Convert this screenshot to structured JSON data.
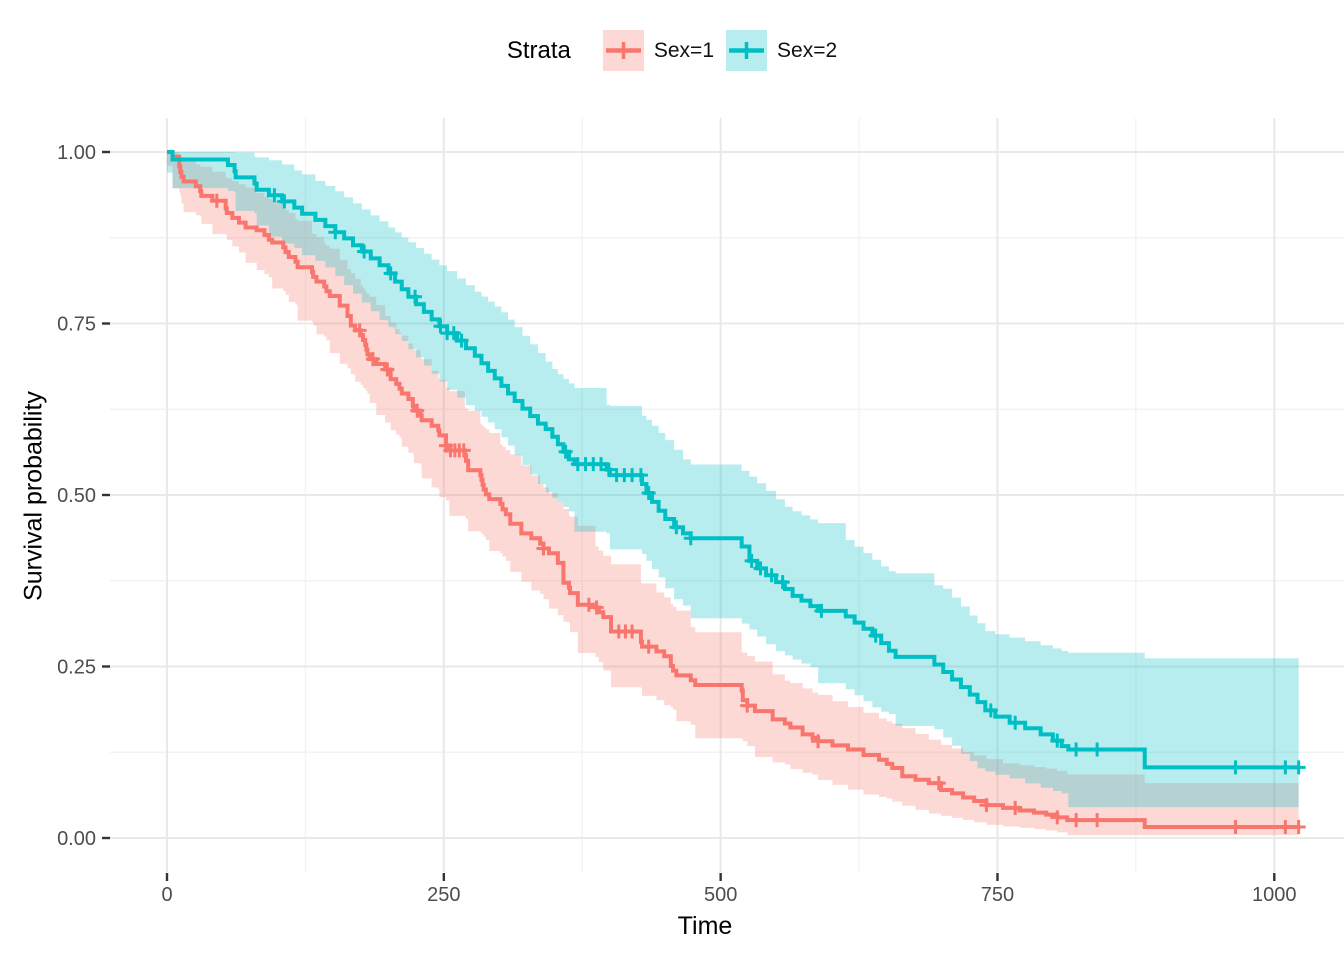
{
  "chart_data": {
    "type": "line",
    "subtype": "kaplan-meier-step-curves-with-confidence-bands",
    "title": "",
    "legend": {
      "title": "Strata",
      "position": "top",
      "items": [
        {
          "id": "sex1",
          "label": "Sex=1",
          "color": "#F8766D"
        },
        {
          "id": "sex2",
          "label": "Sex=2",
          "color": "#00BFC4"
        }
      ]
    },
    "x_axis": {
      "label": "Time",
      "ticks": [
        0,
        250,
        500,
        750,
        1000
      ],
      "tick_labels": [
        "0",
        "250",
        "500",
        "750",
        "1000"
      ],
      "minor_ticks": [
        125,
        375,
        625,
        875
      ],
      "range": [
        0,
        1022
      ]
    },
    "y_axis": {
      "label": "Survival probability",
      "ticks": [
        0.0,
        0.25,
        0.5,
        0.75,
        1.0
      ],
      "tick_labels": [
        "0.00",
        "0.25",
        "0.50",
        "0.75",
        "1.00"
      ],
      "minor_ticks": [
        0.125,
        0.375,
        0.625,
        0.875
      ],
      "range": [
        0,
        1
      ]
    },
    "grid": {
      "major_color": "#E9E9E9",
      "minor_color": "#F3F3F3",
      "background": "#FFFFFF"
    },
    "style": {
      "band_opacity": 0.28,
      "line_width": 4,
      "censor_size": 7,
      "tick_label_color": "#4D4D4D"
    },
    "series": [
      {
        "id": "sex1",
        "name": "Sex=1",
        "color": "#F8766D",
        "end_time": 1022,
        "steps": [
          [
            0,
            1.0
          ],
          [
            5,
            0.993
          ],
          [
            11,
            0.979
          ],
          [
            12,
            0.971
          ],
          [
            13,
            0.964
          ],
          [
            15,
            0.957
          ],
          [
            26,
            0.95
          ],
          [
            30,
            0.943
          ],
          [
            31,
            0.936
          ],
          [
            41,
            0.929
          ],
          [
            53,
            0.918
          ],
          [
            54,
            0.911
          ],
          [
            59,
            0.904
          ],
          [
            65,
            0.897
          ],
          [
            71,
            0.89
          ],
          [
            81,
            0.886
          ],
          [
            88,
            0.879
          ],
          [
            92,
            0.872
          ],
          [
            95,
            0.868
          ],
          [
            105,
            0.861
          ],
          [
            107,
            0.854
          ],
          [
            110,
            0.847
          ],
          [
            116,
            0.84
          ],
          [
            118,
            0.832
          ],
          [
            131,
            0.825
          ],
          [
            132,
            0.818
          ],
          [
            135,
            0.811
          ],
          [
            142,
            0.804
          ],
          [
            144,
            0.797
          ],
          [
            147,
            0.79
          ],
          [
            156,
            0.776
          ],
          [
            163,
            0.761
          ],
          [
            166,
            0.747
          ],
          [
            170,
            0.74
          ],
          [
            175,
            0.733
          ],
          [
            177,
            0.726
          ],
          [
            179,
            0.719
          ],
          [
            180,
            0.712
          ],
          [
            181,
            0.705
          ],
          [
            183,
            0.698
          ],
          [
            189,
            0.691
          ],
          [
            197,
            0.683
          ],
          [
            202,
            0.669
          ],
          [
            207,
            0.662
          ],
          [
            210,
            0.655
          ],
          [
            212,
            0.648
          ],
          [
            218,
            0.64
          ],
          [
            222,
            0.63
          ],
          [
            223,
            0.623
          ],
          [
            229,
            0.616
          ],
          [
            230,
            0.609
          ],
          [
            239,
            0.601
          ],
          [
            245,
            0.594
          ],
          [
            246,
            0.587
          ],
          [
            252,
            0.572
          ],
          [
            255,
            0.565
          ],
          [
            269,
            0.558
          ],
          [
            270,
            0.55
          ],
          [
            272,
            0.536
          ],
          [
            283,
            0.529
          ],
          [
            284,
            0.522
          ],
          [
            285,
            0.515
          ],
          [
            286,
            0.508
          ],
          [
            288,
            0.501
          ],
          [
            291,
            0.494
          ],
          [
            301,
            0.487
          ],
          [
            303,
            0.479
          ],
          [
            306,
            0.472
          ],
          [
            310,
            0.458
          ],
          [
            320,
            0.444
          ],
          [
            329,
            0.437
          ],
          [
            337,
            0.429
          ],
          [
            340,
            0.422
          ],
          [
            345,
            0.415
          ],
          [
            353,
            0.401
          ],
          [
            358,
            0.372
          ],
          [
            363,
            0.365
          ],
          [
            364,
            0.357
          ],
          [
            371,
            0.34
          ],
          [
            387,
            0.336
          ],
          [
            390,
            0.329
          ],
          [
            394,
            0.322
          ],
          [
            401,
            0.301
          ],
          [
            428,
            0.286
          ],
          [
            429,
            0.279
          ],
          [
            442,
            0.272
          ],
          [
            449,
            0.265
          ],
          [
            455,
            0.251
          ],
          [
            457,
            0.244
          ],
          [
            460,
            0.237
          ],
          [
            473,
            0.23
          ],
          [
            477,
            0.223
          ],
          [
            519,
            0.215
          ],
          [
            520,
            0.201
          ],
          [
            524,
            0.193
          ],
          [
            531,
            0.185
          ],
          [
            547,
            0.173
          ],
          [
            558,
            0.167
          ],
          [
            563,
            0.161
          ],
          [
            574,
            0.151
          ],
          [
            583,
            0.146
          ],
          [
            588,
            0.141
          ],
          [
            601,
            0.135
          ],
          [
            615,
            0.129
          ],
          [
            629,
            0.121
          ],
          [
            643,
            0.114
          ],
          [
            650,
            0.108
          ],
          [
            655,
            0.102
          ],
          [
            664,
            0.09
          ],
          [
            676,
            0.085
          ],
          [
            688,
            0.08
          ],
          [
            699,
            0.07
          ],
          [
            709,
            0.065
          ],
          [
            719,
            0.059
          ],
          [
            729,
            0.054
          ],
          [
            740,
            0.048
          ],
          [
            755,
            0.044
          ],
          [
            770,
            0.04
          ],
          [
            783,
            0.037
          ],
          [
            794,
            0.034
          ],
          [
            804,
            0.03
          ],
          [
            813,
            0.026
          ],
          [
            883,
            0.016
          ]
        ],
        "censor_times": [
          45,
          174,
          186,
          199,
          226,
          252,
          256,
          260,
          264,
          268,
          340,
          381,
          388,
          408,
          414,
          420,
          435,
          524,
          588,
          697,
          740,
          766,
          804,
          821,
          840,
          965,
          1010,
          1022
        ],
        "ci": [
          [
            0,
            1.0,
            1.0
          ],
          [
            5,
            0.98,
            1.0
          ],
          [
            15,
            0.925,
            0.99
          ],
          [
            50,
            0.885,
            0.965
          ],
          [
            100,
            0.81,
            0.925
          ],
          [
            150,
            0.72,
            0.855
          ],
          [
            200,
            0.61,
            0.755
          ],
          [
            250,
            0.5,
            0.66
          ],
          [
            300,
            0.42,
            0.575
          ],
          [
            350,
            0.34,
            0.495
          ],
          [
            400,
            0.245,
            0.4
          ],
          [
            450,
            0.2,
            0.35
          ],
          [
            477,
            0.165,
            0.3
          ],
          [
            520,
            0.145,
            0.27
          ],
          [
            550,
            0.115,
            0.235
          ],
          [
            600,
            0.085,
            0.2
          ],
          [
            650,
            0.06,
            0.17
          ],
          [
            700,
            0.035,
            0.135
          ],
          [
            750,
            0.02,
            0.11
          ],
          [
            800,
            0.012,
            0.1
          ],
          [
            814,
            0.008,
            0.092
          ],
          [
            883,
            0.004,
            0.08
          ],
          [
            1022,
            0.004,
            0.08
          ]
        ]
      },
      {
        "id": "sex2",
        "name": "Sex=2",
        "color": "#00BFC4",
        "end_time": 1022,
        "steps": [
          [
            0,
            1.0
          ],
          [
            5,
            0.989
          ],
          [
            55,
            0.981
          ],
          [
            61,
            0.972
          ],
          [
            62,
            0.963
          ],
          [
            79,
            0.954
          ],
          [
            81,
            0.945
          ],
          [
            92,
            0.937
          ],
          [
            104,
            0.928
          ],
          [
            115,
            0.919
          ],
          [
            122,
            0.91
          ],
          [
            134,
            0.901
          ],
          [
            143,
            0.892
          ],
          [
            152,
            0.883
          ],
          [
            160,
            0.874
          ],
          [
            168,
            0.864
          ],
          [
            176,
            0.855
          ],
          [
            184,
            0.845
          ],
          [
            192,
            0.835
          ],
          [
            200,
            0.823
          ],
          [
            206,
            0.811
          ],
          [
            212,
            0.8
          ],
          [
            218,
            0.789
          ],
          [
            225,
            0.778
          ],
          [
            232,
            0.767
          ],
          [
            239,
            0.756
          ],
          [
            246,
            0.746
          ],
          [
            253,
            0.736
          ],
          [
            262,
            0.725
          ],
          [
            270,
            0.714
          ],
          [
            278,
            0.703
          ],
          [
            284,
            0.692
          ],
          [
            290,
            0.681
          ],
          [
            296,
            0.67
          ],
          [
            302,
            0.659
          ],
          [
            308,
            0.648
          ],
          [
            314,
            0.637
          ],
          [
            321,
            0.626
          ],
          [
            328,
            0.615
          ],
          [
            335,
            0.604
          ],
          [
            342,
            0.596
          ],
          [
            348,
            0.585
          ],
          [
            353,
            0.574
          ],
          [
            358,
            0.563
          ],
          [
            363,
            0.552
          ],
          [
            368,
            0.545
          ],
          [
            397,
            0.537
          ],
          [
            400,
            0.529
          ],
          [
            429,
            0.516
          ],
          [
            433,
            0.503
          ],
          [
            438,
            0.49
          ],
          [
            444,
            0.477
          ],
          [
            450,
            0.465
          ],
          [
            458,
            0.453
          ],
          [
            466,
            0.444
          ],
          [
            473,
            0.437
          ],
          [
            519,
            0.425
          ],
          [
            526,
            0.404
          ],
          [
            533,
            0.393
          ],
          [
            541,
            0.383
          ],
          [
            550,
            0.373
          ],
          [
            558,
            0.363
          ],
          [
            565,
            0.353
          ],
          [
            573,
            0.346
          ],
          [
            581,
            0.338
          ],
          [
            588,
            0.331
          ],
          [
            613,
            0.323
          ],
          [
            621,
            0.314
          ],
          [
            629,
            0.305
          ],
          [
            637,
            0.295
          ],
          [
            645,
            0.284
          ],
          [
            652,
            0.273
          ],
          [
            658,
            0.264
          ],
          [
            693,
            0.253
          ],
          [
            701,
            0.242
          ],
          [
            709,
            0.231
          ],
          [
            717,
            0.22
          ],
          [
            725,
            0.209
          ],
          [
            732,
            0.198
          ],
          [
            739,
            0.186
          ],
          [
            748,
            0.177
          ],
          [
            761,
            0.168
          ],
          [
            775,
            0.16
          ],
          [
            789,
            0.151
          ],
          [
            800,
            0.142
          ],
          [
            808,
            0.134
          ],
          [
            814,
            0.129
          ],
          [
            883,
            0.103
          ]
        ],
        "censor_times": [
          97,
          106,
          152,
          178,
          202,
          224,
          247,
          253,
          259,
          266,
          360,
          371,
          378,
          385,
          392,
          399,
          406,
          413,
          420,
          428,
          435,
          460,
          473,
          528,
          536,
          546,
          556,
          591,
          640,
          744,
          766,
          804,
          821,
          840,
          965,
          1010,
          1022
        ],
        "ci": [
          [
            0,
            1.0,
            1.0
          ],
          [
            5,
            0.97,
            1.0
          ],
          [
            60,
            0.945,
            1.0
          ],
          [
            100,
            0.88,
            0.985
          ],
          [
            150,
            0.835,
            0.945
          ],
          [
            200,
            0.755,
            0.89
          ],
          [
            250,
            0.67,
            0.83
          ],
          [
            300,
            0.6,
            0.77
          ],
          [
            350,
            0.5,
            0.68
          ],
          [
            380,
            0.46,
            0.64
          ],
          [
            430,
            0.42,
            0.615
          ],
          [
            470,
            0.34,
            0.545
          ],
          [
            520,
            0.32,
            0.535
          ],
          [
            560,
            0.27,
            0.48
          ],
          [
            600,
            0.24,
            0.45
          ],
          [
            650,
            0.185,
            0.39
          ],
          [
            700,
            0.16,
            0.365
          ],
          [
            740,
            0.1,
            0.3
          ],
          [
            780,
            0.085,
            0.285
          ],
          [
            814,
            0.065,
            0.27
          ],
          [
            883,
            0.045,
            0.262
          ],
          [
            1022,
            0.045,
            0.262
          ]
        ]
      }
    ]
  }
}
